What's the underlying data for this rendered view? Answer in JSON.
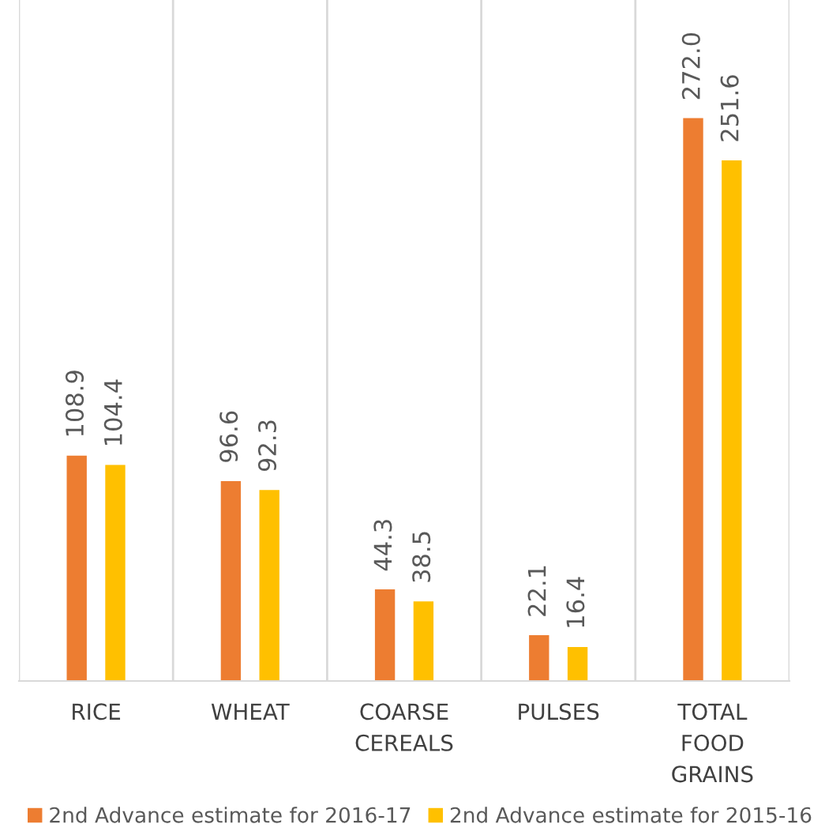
{
  "chart_data": {
    "type": "bar",
    "categories": [
      "RICE",
      "WHEAT",
      "COARSE\nCEREALS",
      "PULSES",
      "TOTAL\nFOOD\nGRAINS"
    ],
    "series": [
      {
        "name": "2nd Advance estimate for 2016-17",
        "color": "#ed7d31",
        "values": [
          108.9,
          96.6,
          44.3,
          22.1,
          272.0
        ],
        "value_labels": [
          "108.9",
          "96.6",
          "44.3",
          "22.1",
          "272.0"
        ]
      },
      {
        "name": "2nd Advance estimate for 2015-16",
        "color": "#ffc000",
        "values": [
          104.4,
          92.3,
          38.5,
          16.4,
          251.6
        ],
        "value_labels": [
          "104.4",
          "92.3",
          "38.5",
          "16.4",
          "251.6"
        ]
      }
    ],
    "grid": "x",
    "legend": "bottom"
  }
}
